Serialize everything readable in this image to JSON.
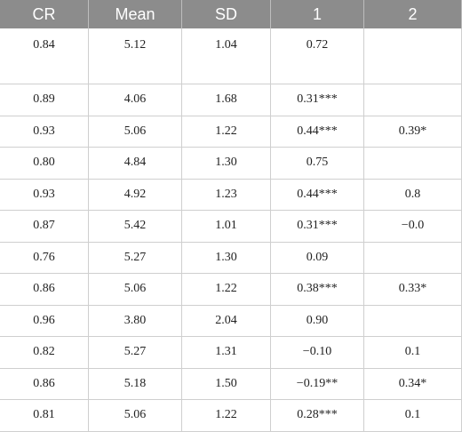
{
  "table": {
    "header": [
      "CR",
      "Mean",
      "SD",
      "1",
      "2"
    ],
    "rows": [
      [
        "0.84",
        "5.12",
        "1.04",
        "0.72"
      ],
      [
        "0.89",
        "4.06",
        "1.68",
        "0.31***"
      ],
      [
        "0.93",
        "5.06",
        "1.22",
        "0.44***",
        "0.39*"
      ],
      [
        "0.80",
        "4.84",
        "1.30",
        "0.75"
      ],
      [
        "0.93",
        "4.92",
        "1.23",
        "0.44***",
        "0.8"
      ],
      [
        "0.87",
        "5.42",
        "1.01",
        "0.31***",
        "−0.0"
      ],
      [
        "0.76",
        "5.27",
        "1.30",
        "0.09"
      ],
      [
        "0.86",
        "5.06",
        "1.22",
        "0.38***",
        "0.33*"
      ],
      [
        "0.96",
        "3.80",
        "2.04",
        "0.90"
      ],
      [
        "0.82",
        "5.27",
        "1.31",
        "−0.10",
        "0.1"
      ],
      [
        "0.86",
        "5.18",
        "1.50",
        "−0.19**",
        "0.34*"
      ],
      [
        "0.81",
        "5.06",
        "1.22",
        "0.28***",
        "0.1"
      ]
    ]
  }
}
